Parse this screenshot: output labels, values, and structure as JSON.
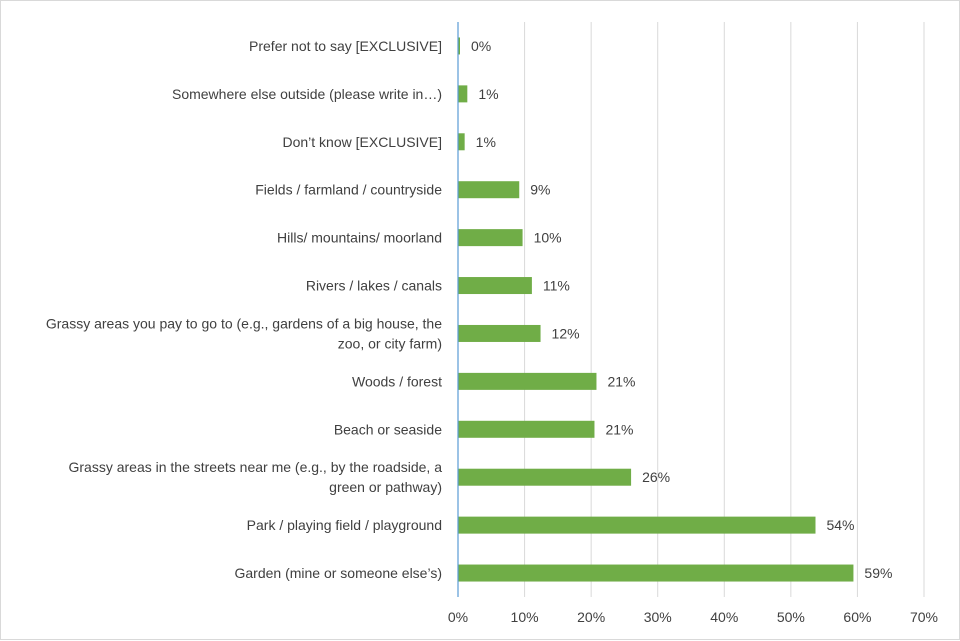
{
  "chart_data": {
    "type": "bar",
    "orientation": "horizontal",
    "categories": [
      [
        "Prefer not to say [EXCLUSIVE]"
      ],
      [
        "Somewhere else outside (please write in…)"
      ],
      [
        "Don’t know [EXCLUSIVE]"
      ],
      [
        "Fields / farmland / countryside"
      ],
      [
        "Hills/ mountains/ moorland"
      ],
      [
        "Rivers / lakes / canals"
      ],
      [
        "Grassy areas you pay to go to (e.g., gardens of a big house, the",
        "zoo, or city farm)"
      ],
      [
        "Woods / forest"
      ],
      [
        "Beach or seaside"
      ],
      [
        "Grassy areas in the streets near me (e.g., by the roadside, a",
        "green or pathway)"
      ],
      [
        "Park / playing field / playground"
      ],
      [
        "Garden (mine or someone else’s)"
      ]
    ],
    "values": [
      0.3,
      1.4,
      1.0,
      9.2,
      9.7,
      11.1,
      12.4,
      20.8,
      20.5,
      26.0,
      53.7,
      59.4
    ],
    "data_labels": [
      "0%",
      "1%",
      "1%",
      "9%",
      "10%",
      "11%",
      "12%",
      "21%",
      "21%",
      "26%",
      "54%",
      "59%"
    ],
    "xlim": [
      0,
      70
    ],
    "x_ticks": [
      "0%",
      "10%",
      "20%",
      "30%",
      "40%",
      "50%",
      "60%",
      "70%"
    ],
    "title": "",
    "xlabel": "",
    "ylabel": "",
    "grid": "vertical",
    "legend": "none",
    "colors": {
      "bar": "#70ad47",
      "gridline": "#d9d9d9",
      "axis": "#5b9bd5",
      "text": "#404040"
    }
  }
}
